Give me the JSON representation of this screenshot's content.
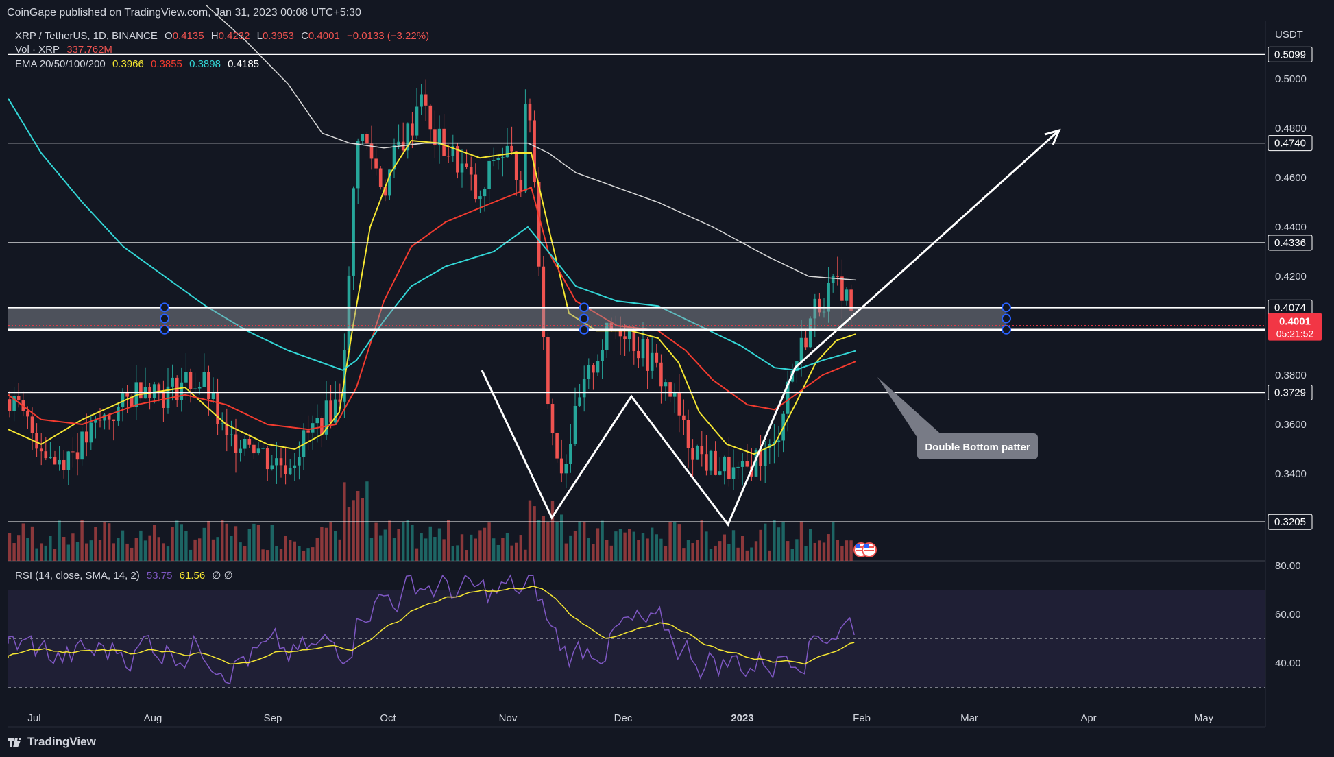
{
  "header": {
    "publisher": "CoinGape published on TradingView.com, Jan 31, 2023 00:08 UTC+5:30"
  },
  "legend": {
    "symbol": "XRP / TetherUS, 1D, BINANCE",
    "open_label": "O",
    "open": "0.4135",
    "high_label": "H",
    "high": "0.4232",
    "low_label": "L",
    "low": "0.3953",
    "close_label": "C",
    "close": "0.4001",
    "change": "−0.0133 (−3.22%)",
    "vol_label": "Vol · XRP",
    "vol_value": "337.762M",
    "ema_label": "EMA 20/50/100/200",
    "ema20": "0.3966",
    "ema50": "0.3855",
    "ema100": "0.3898",
    "ema200": "0.4185",
    "rsi_label": "RSI (14, close, SMA, 14, 2)",
    "rsi_value": "53.75",
    "rsi_sma": "61.56",
    "rsi_extra": "∅ ∅"
  },
  "branding": {
    "logo_text": "TradingView"
  },
  "colors": {
    "background": "#131722",
    "up": "#26a69a",
    "down": "#ef5350",
    "ema20": "#f5e632",
    "ema50": "#f23b2f",
    "ema100": "#33d6d6",
    "ema200": "#d9d9d9",
    "rsi": "#7e57c2",
    "rsi_sma": "#f5e632",
    "price_tag": "#f23645"
  },
  "chart_data": {
    "type": "candlestick",
    "axis_unit": "USDT",
    "y_ticks": [
      "0.5000",
      "0.4800",
      "0.4600",
      "0.4400",
      "0.4200",
      "0.3800",
      "0.3600",
      "0.3400"
    ],
    "x_ticks": [
      "Jul",
      "Aug",
      "Sep",
      "Oct",
      "Nov",
      "Dec",
      "2023",
      "Feb",
      "Mar",
      "Apr",
      "May"
    ],
    "horizontal_levels": [
      "0.5099",
      "0.4740",
      "0.4336",
      "0.4074",
      "0.3984",
      "0.3729",
      "0.3205"
    ],
    "current_price": "0.4001",
    "countdown": "05:21:52",
    "annotation": "Double Bottom patter",
    "rsi_ticks": [
      "80.00",
      "60.00",
      "40.00"
    ]
  },
  "icons": {
    "logo": "tradingview-logo-icon",
    "flags": "us-flag-icon"
  }
}
